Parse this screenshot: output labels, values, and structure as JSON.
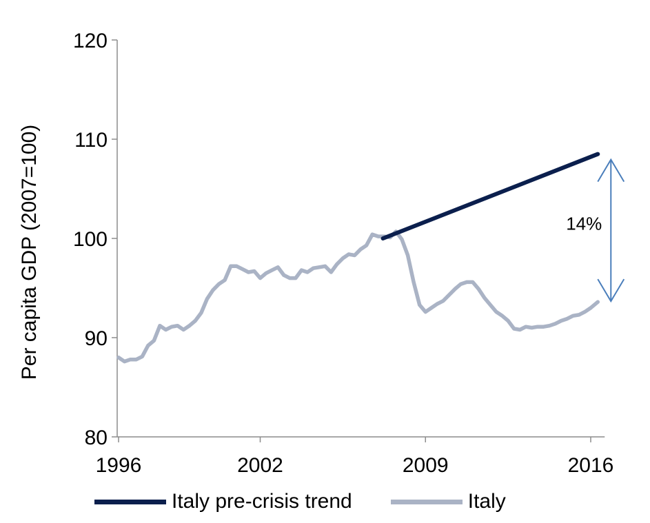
{
  "chart_data": {
    "type": "line",
    "ylabel": "Per capita GDP (2007=100)",
    "xlabel": "",
    "ylim": [
      80,
      120
    ],
    "xlim": [
      1996,
      2016.3
    ],
    "yticks": [
      80,
      90,
      100,
      110,
      120
    ],
    "xticks": [
      1996,
      2002,
      2009,
      2016
    ],
    "xtick_labels": [
      "1996",
      "2002",
      "2009",
      "2016"
    ],
    "grid": false,
    "legend_position": "bottom",
    "series": [
      {
        "name": "Italy pre-crisis trend",
        "color": "#0b1f4d",
        "x": [
          2007.2,
          2016.3
        ],
        "y": [
          100.0,
          108.5
        ]
      },
      {
        "name": "Italy",
        "color": "#aab3c5",
        "x": [
          1996.0,
          1996.25,
          1996.5,
          1996.75,
          1997.0,
          1997.25,
          1997.5,
          1997.75,
          1998.0,
          1998.25,
          1998.5,
          1998.75,
          1999.0,
          1999.25,
          1999.5,
          1999.75,
          2000.0,
          2000.25,
          2000.5,
          2000.75,
          2001.0,
          2001.25,
          2001.5,
          2001.75,
          2002.0,
          2002.25,
          2002.5,
          2002.75,
          2003.0,
          2003.25,
          2003.5,
          2003.75,
          2004.0,
          2004.25,
          2004.5,
          2004.75,
          2005.0,
          2005.25,
          2005.5,
          2005.75,
          2006.0,
          2006.25,
          2006.5,
          2006.75,
          2007.0,
          2007.25,
          2007.5,
          2007.75,
          2008.0,
          2008.25,
          2008.5,
          2008.75,
          2009.0,
          2009.25,
          2009.5,
          2009.75,
          2010.0,
          2010.25,
          2010.5,
          2010.75,
          2011.0,
          2011.25,
          2011.5,
          2011.75,
          2012.0,
          2012.25,
          2012.5,
          2012.75,
          2013.0,
          2013.25,
          2013.5,
          2013.75,
          2014.0,
          2014.25,
          2014.5,
          2014.75,
          2015.0,
          2015.25,
          2015.5,
          2015.75,
          2016.0,
          2016.3
        ],
        "y": [
          88.0,
          87.6,
          87.8,
          87.8,
          88.1,
          89.2,
          89.7,
          91.2,
          90.8,
          91.1,
          91.2,
          90.8,
          91.2,
          91.7,
          92.5,
          93.9,
          94.8,
          95.4,
          95.8,
          97.2,
          97.2,
          96.9,
          96.6,
          96.7,
          96.0,
          96.5,
          96.8,
          97.1,
          96.3,
          96.0,
          96.0,
          96.8,
          96.6,
          97.0,
          97.1,
          97.2,
          96.6,
          97.4,
          98.0,
          98.4,
          98.3,
          98.9,
          99.3,
          100.4,
          100.2,
          100.2,
          100.1,
          100.7,
          99.9,
          98.3,
          95.6,
          93.3,
          92.6,
          93.0,
          93.4,
          93.7,
          94.3,
          94.9,
          95.4,
          95.6,
          95.6,
          94.9,
          94.0,
          93.3,
          92.6,
          92.2,
          91.7,
          90.9,
          90.8,
          91.1,
          91.0,
          91.1,
          91.1,
          91.2,
          91.4,
          91.7,
          91.9,
          92.2,
          92.3,
          92.6,
          93.0,
          93.6
        ]
      }
    ],
    "annotations": [
      {
        "text": "14%",
        "x": 2016.3,
        "from_y": 108.5,
        "to_y": 93.6
      }
    ],
    "colors": {
      "axis": "#8c8c8c",
      "arrow": "#4a7ebb"
    }
  }
}
